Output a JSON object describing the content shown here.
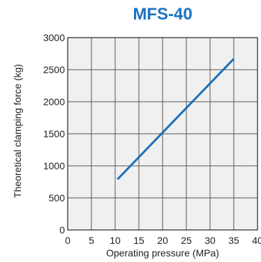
{
  "colors": {
    "title": "#1a73c2",
    "plot_background": "#f0f0f0",
    "grid": "#555555",
    "series_line": "#1b6fb8"
  },
  "chart_data": {
    "type": "line",
    "title": "MFS-40",
    "xlabel": "Operating pressure (MPa)",
    "ylabel": "Theoretical clamping force (kg)",
    "xlim": [
      0,
      40
    ],
    "ylim": [
      0,
      3000
    ],
    "x_ticks": [
      "0",
      "5",
      "10",
      "15",
      "20",
      "25",
      "30",
      "35",
      "40"
    ],
    "y_ticks": [
      "0",
      "500",
      "1000",
      "1500",
      "2000",
      "2500",
      "3000"
    ],
    "grid": true,
    "series": [
      {
        "x": [
          10.5,
          35
        ],
        "y": [
          790,
          2670
        ]
      }
    ]
  }
}
